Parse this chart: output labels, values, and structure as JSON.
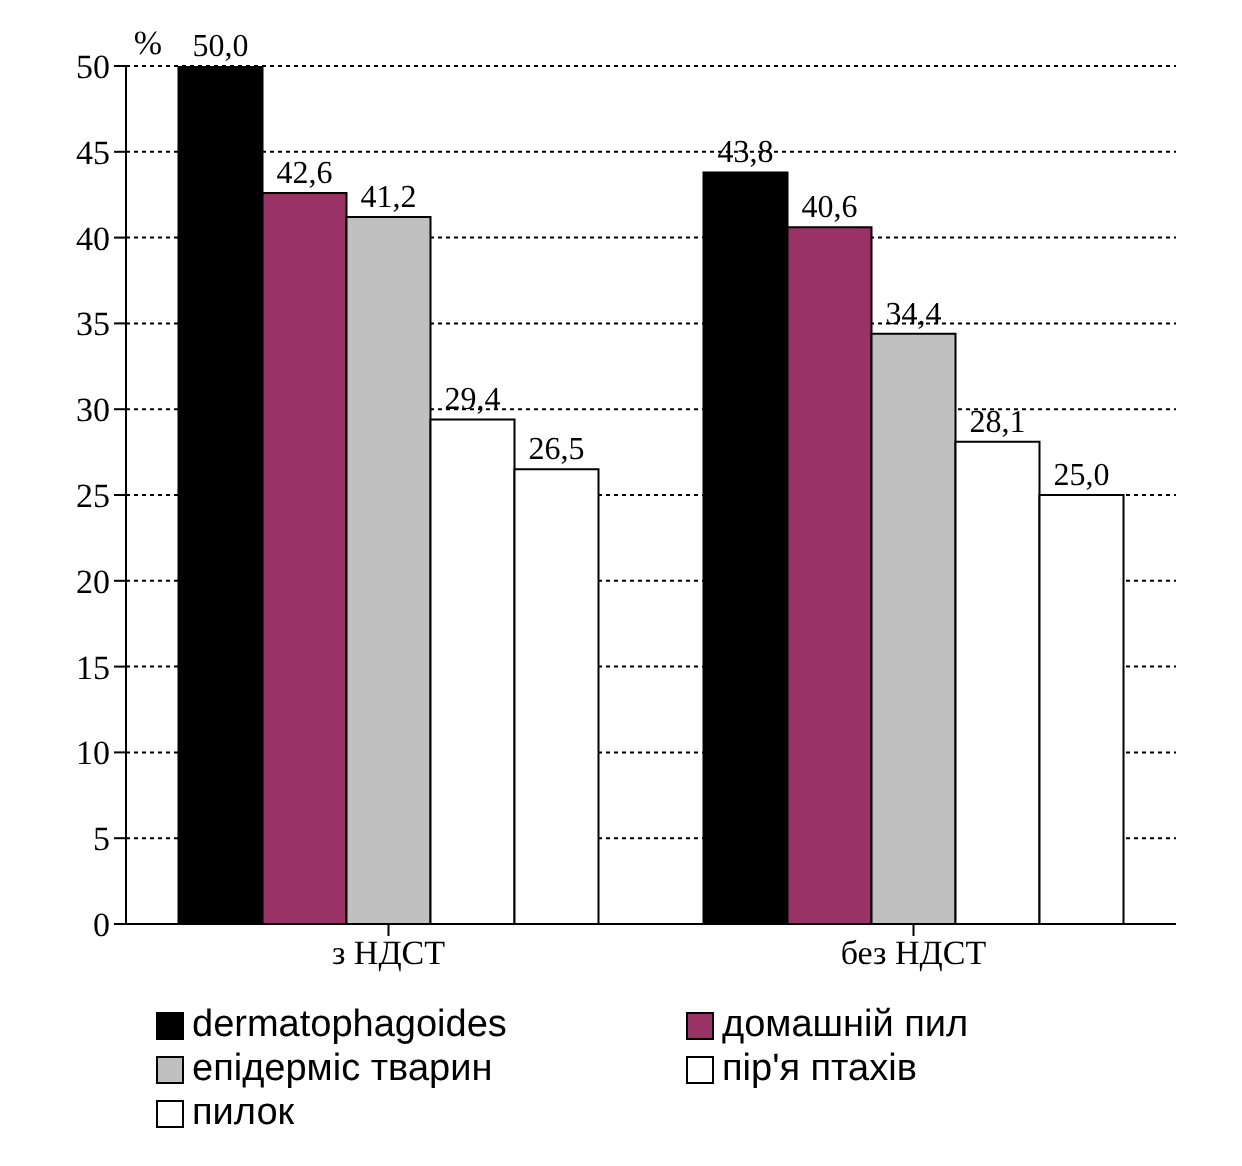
{
  "chart_data": {
    "type": "bar",
    "ylabel": "%",
    "categories": [
      "з НДСТ",
      "без НДСТ"
    ],
    "series": [
      {
        "name": "dermatophagoides",
        "color": "#000000",
        "values": [
          50.0,
          43.8
        ],
        "value_labels": [
          "50,0",
          "43,8"
        ]
      },
      {
        "name": "домашній пил",
        "color": "#993366",
        "values": [
          42.6,
          40.6
        ],
        "value_labels": [
          "42,6",
          "40,6"
        ]
      },
      {
        "name": "епідерміс тварин",
        "color": "#c0c0c0",
        "values": [
          41.2,
          34.4
        ],
        "value_labels": [
          "41,2",
          "34,4"
        ]
      },
      {
        "name": "пір'я птахів",
        "color": "#ffffff",
        "values": [
          29.4,
          28.1
        ],
        "value_labels": [
          "29,4",
          "28,1"
        ]
      },
      {
        "name": "пилок",
        "color": "#ffffff",
        "values": [
          26.5,
          25.0
        ],
        "value_labels": [
          "26,5",
          "25,0"
        ]
      }
    ],
    "ylim": [
      0,
      50
    ],
    "yticks": [
      0,
      5,
      10,
      15,
      20,
      25,
      30,
      35,
      40,
      45,
      50
    ],
    "grid": "y",
    "legend": "bottom"
  }
}
